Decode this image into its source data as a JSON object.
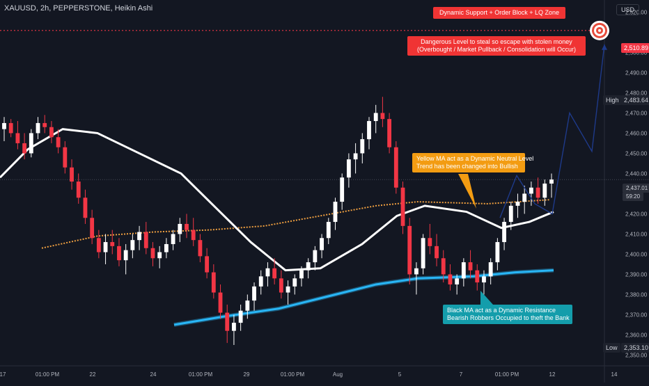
{
  "header": {
    "symbol_label": "XAUUSD, 2h, PEPPERSTONE, Heikin Ashi"
  },
  "axis": {
    "currency": "USD",
    "price_ticks": [
      "2,520.00",
      "2,500.00",
      "2,490.00",
      "2,480.00",
      "2,470.00",
      "2,460.00",
      "2,450.00",
      "2,440.00",
      "2,420.00",
      "2,410.00",
      "2,400.00",
      "2,390.00",
      "2,380.00",
      "2,370.00",
      "2,360.00",
      "2,350.00"
    ],
    "date_ticks": [
      "17",
      "01:00 PM",
      "22",
      "24",
      "01:00 PM",
      "29",
      "01:00 PM",
      "Aug",
      "5",
      "7",
      "01:00 PM",
      "12",
      "14"
    ]
  },
  "price_tags": {
    "target": "2,510.89",
    "high_label": "High",
    "high_value": "2,483.64",
    "current_value": "2,437.01",
    "countdown": "59:20",
    "low_label": "Low",
    "low_value": "2,353.10"
  },
  "annotations": {
    "zone": "Dynamic Support + Order Block + LQ Zone",
    "danger_line1": "Dangerous Level to steal so escape with stolen money",
    "danger_line2": "(Overbought / Market Pullback / Consolidation will Occur)",
    "yellow_line1": "Yellow MA act as a Dynamic Neutral Level",
    "yellow_line2": "Trend has been changed into Bullish",
    "black_line1": "Black MA act as a Dynamic Resistance",
    "black_line2": "Bearish Robbers Occupied to theft the Bank"
  },
  "colors": {
    "background": "#131722",
    "bull": "#ffffff",
    "bear": "#f23645",
    "white_ma": "#ffffff",
    "orange_ma": "#f0a040",
    "blue_band": "#29b6f6",
    "projection": "#1e3a8a",
    "target_line": "#f23645"
  },
  "chart_data": {
    "type": "candlestick",
    "ylim": [
      2345,
      2526
    ],
    "target_level": 2510.89,
    "current_level": 2437.01,
    "high": 2483.64,
    "low": 2353.1,
    "candles": [
      [
        2462,
        2468,
        2456,
        2465
      ],
      [
        2465,
        2467,
        2458,
        2460
      ],
      [
        2460,
        2466,
        2452,
        2455
      ],
      [
        2455,
        2460,
        2447,
        2450
      ],
      [
        2450,
        2462,
        2448,
        2460
      ],
      [
        2460,
        2468,
        2457,
        2465
      ],
      [
        2465,
        2469,
        2460,
        2463
      ],
      [
        2463,
        2466,
        2455,
        2458
      ],
      [
        2458,
        2462,
        2450,
        2453
      ],
      [
        2453,
        2456,
        2440,
        2443
      ],
      [
        2443,
        2447,
        2432,
        2436
      ],
      [
        2436,
        2440,
        2425,
        2428
      ],
      [
        2428,
        2432,
        2415,
        2418
      ],
      [
        2418,
        2422,
        2405,
        2408
      ],
      [
        2408,
        2412,
        2398,
        2401
      ],
      [
        2401,
        2410,
        2395,
        2406
      ],
      [
        2406,
        2412,
        2400,
        2404
      ],
      [
        2404,
        2408,
        2394,
        2397
      ],
      [
        2397,
        2405,
        2390,
        2402
      ],
      [
        2402,
        2410,
        2398,
        2407
      ],
      [
        2407,
        2414,
        2402,
        2411
      ],
      [
        2411,
        2416,
        2400,
        2403
      ],
      [
        2403,
        2406,
        2394,
        2398
      ],
      [
        2398,
        2404,
        2393,
        2401
      ],
      [
        2401,
        2408,
        2398,
        2405
      ],
      [
        2405,
        2412,
        2402,
        2410
      ],
      [
        2410,
        2418,
        2406,
        2415
      ],
      [
        2415,
        2420,
        2408,
        2412
      ],
      [
        2412,
        2418,
        2404,
        2407
      ],
      [
        2407,
        2410,
        2396,
        2399
      ],
      [
        2399,
        2403,
        2388,
        2391
      ],
      [
        2391,
        2395,
        2378,
        2381
      ],
      [
        2381,
        2385,
        2368,
        2371
      ],
      [
        2371,
        2375,
        2356,
        2362
      ],
      [
        2362,
        2370,
        2355,
        2366
      ],
      [
        2366,
        2375,
        2362,
        2372
      ],
      [
        2372,
        2380,
        2368,
        2377
      ],
      [
        2377,
        2386,
        2372,
        2384
      ],
      [
        2384,
        2392,
        2380,
        2389
      ],
      [
        2389,
        2396,
        2384,
        2393
      ],
      [
        2393,
        2398,
        2385,
        2388
      ],
      [
        2388,
        2392,
        2378,
        2381
      ],
      [
        2381,
        2387,
        2375,
        2384
      ],
      [
        2384,
        2390,
        2380,
        2388
      ],
      [
        2388,
        2394,
        2384,
        2392
      ],
      [
        2392,
        2398,
        2388,
        2396
      ],
      [
        2396,
        2404,
        2392,
        2402
      ],
      [
        2402,
        2410,
        2398,
        2408
      ],
      [
        2408,
        2418,
        2405,
        2416
      ],
      [
        2416,
        2428,
        2412,
        2426
      ],
      [
        2426,
        2440,
        2422,
        2438
      ],
      [
        2438,
        2450,
        2433,
        2447
      ],
      [
        2447,
        2455,
        2440,
        2450
      ],
      [
        2450,
        2460,
        2445,
        2457
      ],
      [
        2457,
        2468,
        2452,
        2466
      ],
      [
        2466,
        2474,
        2460,
        2470
      ],
      [
        2470,
        2478,
        2463,
        2467
      ],
      [
        2467,
        2470,
        2450,
        2453
      ],
      [
        2453,
        2456,
        2430,
        2433
      ],
      [
        2433,
        2436,
        2410,
        2414
      ],
      [
        2414,
        2418,
        2385,
        2390
      ],
      [
        2390,
        2396,
        2380,
        2393
      ],
      [
        2393,
        2410,
        2390,
        2408
      ],
      [
        2408,
        2415,
        2400,
        2404
      ],
      [
        2404,
        2410,
        2394,
        2398
      ],
      [
        2398,
        2402,
        2386,
        2390
      ],
      [
        2390,
        2395,
        2382,
        2385
      ],
      [
        2385,
        2390,
        2380,
        2388
      ],
      [
        2388,
        2398,
        2384,
        2396
      ],
      [
        2396,
        2402,
        2388,
        2392
      ],
      [
        2392,
        2395,
        2382,
        2386
      ],
      [
        2386,
        2392,
        2380,
        2389
      ],
      [
        2389,
        2398,
        2385,
        2396
      ],
      [
        2396,
        2408,
        2392,
        2406
      ],
      [
        2406,
        2418,
        2402,
        2416
      ],
      [
        2416,
        2426,
        2412,
        2424
      ],
      [
        2424,
        2430,
        2418,
        2426
      ],
      [
        2426,
        2434,
        2420,
        2430
      ],
      [
        2430,
        2436,
        2424,
        2433
      ],
      [
        2433,
        2438,
        2425,
        2428
      ],
      [
        2428,
        2437,
        2424,
        2435
      ],
      [
        2435,
        2440,
        2428,
        2437
      ]
    ]
  }
}
